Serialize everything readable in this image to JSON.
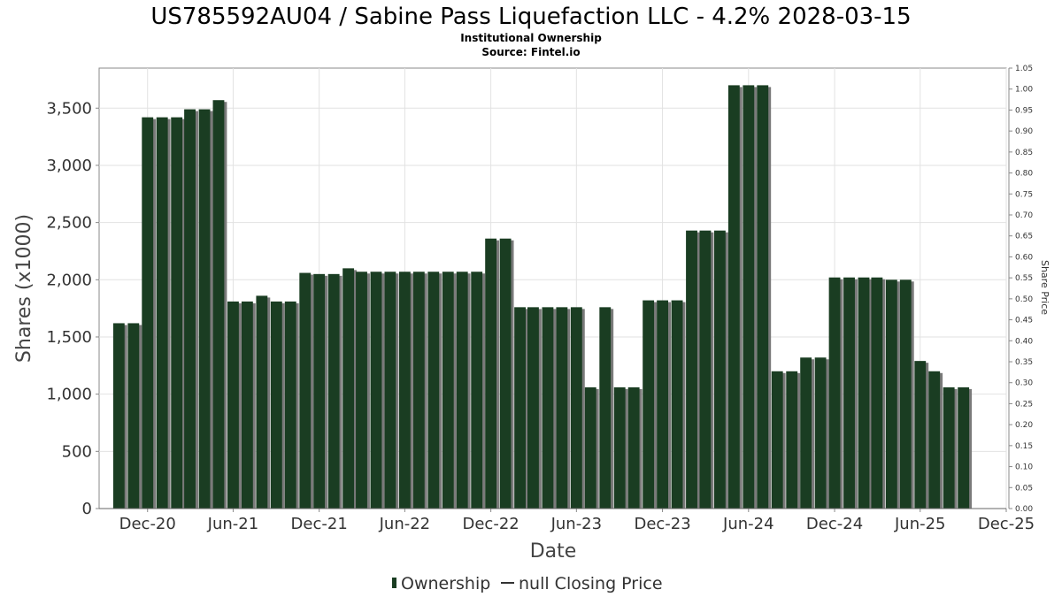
{
  "chart_data": {
    "type": "bar",
    "title": "US785592AU04 / Sabine Pass Liquefaction LLC - 4.2% 2028-03-15",
    "subtitle_lines": [
      "Institutional Ownership",
      "Source: Fintel.io"
    ],
    "xlabel": "Date",
    "ylabel": "Shares (x1000)",
    "ylabel_right": "Share Price",
    "ylim": [
      0,
      3850
    ],
    "ylim_right": [
      0,
      1.05
    ],
    "yticks": [
      "0",
      "500",
      "1,000",
      "1,500",
      "2,000",
      "2,500",
      "3,000",
      "3,500"
    ],
    "yticks_values": [
      0,
      500,
      1000,
      1500,
      2000,
      2500,
      3000,
      3500
    ],
    "yticks_right": [
      "0.00",
      "0.05",
      "0.10",
      "0.15",
      "0.20",
      "0.25",
      "0.30",
      "0.35",
      "0.40",
      "0.45",
      "0.50",
      "0.55",
      "0.60",
      "0.65",
      "0.70",
      "0.75",
      "0.80",
      "0.85",
      "0.90",
      "0.95",
      "1.00",
      "1.05"
    ],
    "x_range": [
      "2020-08-20",
      "2025-12-01"
    ],
    "xticks": [
      {
        "label": "Dec-20",
        "date": "2020-12-01"
      },
      {
        "label": "Jun-21",
        "date": "2021-06-01"
      },
      {
        "label": "Dec-21",
        "date": "2021-12-01"
      },
      {
        "label": "Jun-22",
        "date": "2022-06-01"
      },
      {
        "label": "Dec-22",
        "date": "2022-12-01"
      },
      {
        "label": "Jun-23",
        "date": "2023-06-01"
      },
      {
        "label": "Dec-23",
        "date": "2023-12-01"
      },
      {
        "label": "Jun-24",
        "date": "2024-06-01"
      },
      {
        "label": "Dec-24",
        "date": "2024-12-01"
      },
      {
        "label": "Jun-25",
        "date": "2025-06-01"
      },
      {
        "label": "Dec-25",
        "date": "2025-12-01"
      }
    ],
    "grid": true,
    "legend_position": "bottom-center",
    "series": [
      {
        "name": "Ownership",
        "color": "#1a3d22",
        "shadow_color": "#7a7a7a",
        "points": [
          {
            "date": "2020-10-01",
            "value": 1620
          },
          {
            "date": "2020-11-01",
            "value": 1620
          },
          {
            "date": "2020-12-01",
            "value": 3420
          },
          {
            "date": "2021-01-01",
            "value": 3420
          },
          {
            "date": "2021-02-01",
            "value": 3420
          },
          {
            "date": "2021-03-01",
            "value": 3490
          },
          {
            "date": "2021-04-01",
            "value": 3490
          },
          {
            "date": "2021-05-01",
            "value": 3570
          },
          {
            "date": "2021-06-01",
            "value": 1810
          },
          {
            "date": "2021-07-01",
            "value": 1810
          },
          {
            "date": "2021-08-01",
            "value": 1860
          },
          {
            "date": "2021-09-01",
            "value": 1810
          },
          {
            "date": "2021-10-01",
            "value": 1810
          },
          {
            "date": "2021-11-01",
            "value": 2060
          },
          {
            "date": "2021-12-01",
            "value": 2050
          },
          {
            "date": "2022-01-01",
            "value": 2050
          },
          {
            "date": "2022-02-01",
            "value": 2100
          },
          {
            "date": "2022-03-01",
            "value": 2070
          },
          {
            "date": "2022-04-01",
            "value": 2070
          },
          {
            "date": "2022-05-01",
            "value": 2070
          },
          {
            "date": "2022-06-01",
            "value": 2070
          },
          {
            "date": "2022-07-01",
            "value": 2070
          },
          {
            "date": "2022-08-01",
            "value": 2070
          },
          {
            "date": "2022-09-01",
            "value": 2070
          },
          {
            "date": "2022-10-01",
            "value": 2070
          },
          {
            "date": "2022-11-01",
            "value": 2070
          },
          {
            "date": "2022-12-01",
            "value": 2360
          },
          {
            "date": "2023-01-01",
            "value": 2360
          },
          {
            "date": "2023-02-01",
            "value": 1760
          },
          {
            "date": "2023-03-01",
            "value": 1760
          },
          {
            "date": "2023-04-01",
            "value": 1760
          },
          {
            "date": "2023-05-01",
            "value": 1760
          },
          {
            "date": "2023-06-01",
            "value": 1760
          },
          {
            "date": "2023-07-01",
            "value": 1060
          },
          {
            "date": "2023-08-01",
            "value": 1760
          },
          {
            "date": "2023-09-01",
            "value": 1060
          },
          {
            "date": "2023-10-01",
            "value": 1060
          },
          {
            "date": "2023-11-01",
            "value": 1820
          },
          {
            "date": "2023-12-01",
            "value": 1820
          },
          {
            "date": "2024-01-01",
            "value": 1820
          },
          {
            "date": "2024-02-01",
            "value": 2430
          },
          {
            "date": "2024-03-01",
            "value": 2430
          },
          {
            "date": "2024-04-01",
            "value": 2430
          },
          {
            "date": "2024-05-01",
            "value": 3700
          },
          {
            "date": "2024-06-01",
            "value": 3700
          },
          {
            "date": "2024-07-01",
            "value": 3700
          },
          {
            "date": "2024-08-01",
            "value": 1200
          },
          {
            "date": "2024-09-01",
            "value": 1200
          },
          {
            "date": "2024-10-01",
            "value": 1320
          },
          {
            "date": "2024-11-01",
            "value": 1320
          },
          {
            "date": "2024-12-01",
            "value": 2020
          },
          {
            "date": "2025-01-01",
            "value": 2020
          },
          {
            "date": "2025-02-01",
            "value": 2020
          },
          {
            "date": "2025-03-01",
            "value": 2020
          },
          {
            "date": "2025-04-01",
            "value": 2000
          },
          {
            "date": "2025-05-01",
            "value": 2000
          },
          {
            "date": "2025-06-01",
            "value": 1290
          },
          {
            "date": "2025-07-01",
            "value": 1200
          },
          {
            "date": "2025-08-01",
            "value": 1060
          },
          {
            "date": "2025-09-01",
            "value": 1060
          }
        ]
      },
      {
        "name": "null Closing Price",
        "color": "#333333",
        "points": []
      }
    ]
  }
}
